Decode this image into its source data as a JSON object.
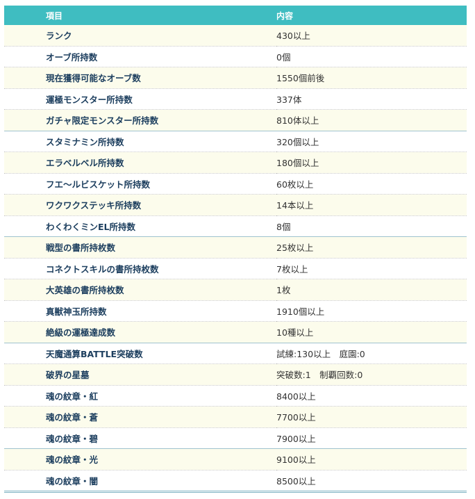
{
  "header": {
    "item": "項目",
    "content": "内容"
  },
  "rows": [
    {
      "item": "ランク",
      "value": "430以上"
    },
    {
      "item": "オーブ所持数",
      "value": "0個"
    },
    {
      "item": "現在獲得可能なオーブ数",
      "value": "1550個前後"
    },
    {
      "item": "運極モンスター所持数",
      "value": "337体"
    },
    {
      "item": "ガチャ限定モンスター所持数",
      "value": "810体以上"
    },
    {
      "item": "スタミナミン所持数",
      "value": "320個以上"
    },
    {
      "item": "エラベルベル所持数",
      "value": "180個以上"
    },
    {
      "item": "フエ～ルビスケット所持数",
      "value": "60枚以上"
    },
    {
      "item": "ワクワクステッキ所持数",
      "value": "14本以上"
    },
    {
      "item": "わくわくミンEL所持数",
      "value": "8個"
    },
    {
      "item": "戦型の書所持枚数",
      "value": "25枚以上"
    },
    {
      "item": "コネクトスキルの書所持枚数",
      "value": "7枚以上"
    },
    {
      "item": "大英雄の書所持枚数",
      "value": "1枚"
    },
    {
      "item": "真獣神玉所持数",
      "value": "1910個以上"
    },
    {
      "item": "絶級の運極達成数",
      "value": "10種以上"
    },
    {
      "item": "天魔通算BATTLE突破数",
      "value": "試練:130以上　庭園:0"
    },
    {
      "item": "破界の星墓",
      "value": "突破数:1　制覇回数:0"
    },
    {
      "item": "魂の紋章・紅",
      "value": "8400以上"
    },
    {
      "item": "魂の紋章・蒼",
      "value": "7700以上"
    },
    {
      "item": "魂の紋章・碧",
      "value": "7900以上"
    },
    {
      "item": "魂の紋章・光",
      "value": "9100以上"
    },
    {
      "item": "魂の紋章・闇",
      "value": "8500以上"
    }
  ],
  "colors": {
    "header": "#3fbdc1",
    "row_alt": "#fcfcec",
    "item_text": "#1c3e5e"
  }
}
